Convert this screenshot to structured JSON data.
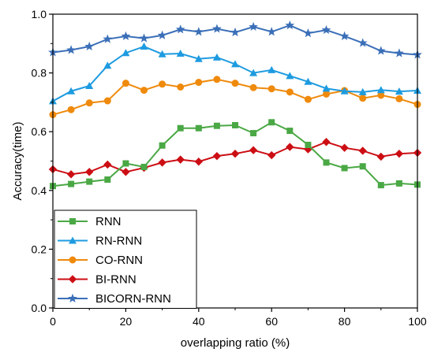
{
  "chart_data": {
    "type": "line",
    "title": "",
    "xlabel": "overlapping ratio (%)",
    "ylabel": "Accuracy(time)",
    "xlim": [
      0,
      100
    ],
    "ylim": [
      0.0,
      1.0
    ],
    "x_ticks": [
      0,
      20,
      40,
      60,
      80,
      100
    ],
    "y_ticks": [
      0.0,
      0.2,
      0.4,
      0.6,
      0.8,
      1.0
    ],
    "x_tick_labels": [
      "0",
      "20",
      "40",
      "60",
      "80",
      "100"
    ],
    "y_tick_labels": [
      "0.0",
      "0.2",
      "0.4",
      "0.6",
      "0.8",
      "1.0"
    ],
    "grid": false,
    "legend_position": "bottom-left",
    "x": [
      0,
      5,
      10,
      15,
      20,
      25,
      30,
      35,
      40,
      45,
      50,
      55,
      60,
      65,
      70,
      75,
      80,
      85,
      90,
      95,
      100
    ],
    "series": [
      {
        "name": "RNN",
        "color": "#4aa845",
        "marker": "square",
        "values": [
          0.415,
          0.422,
          0.43,
          0.437,
          0.492,
          0.48,
          0.553,
          0.612,
          0.612,
          0.62,
          0.622,
          0.595,
          0.632,
          0.603,
          0.555,
          0.495,
          0.476,
          0.482,
          0.418,
          0.424,
          0.42
        ]
      },
      {
        "name": "RN-RNN",
        "color": "#1e9be0",
        "marker": "triangle",
        "values": [
          0.704,
          0.738,
          0.756,
          0.825,
          0.868,
          0.89,
          0.864,
          0.866,
          0.848,
          0.853,
          0.83,
          0.8,
          0.81,
          0.79,
          0.77,
          0.747,
          0.738,
          0.735,
          0.742,
          0.737,
          0.74
        ]
      },
      {
        "name": "CO-RNN",
        "color": "#ef8a0c",
        "marker": "circle",
        "values": [
          0.658,
          0.675,
          0.698,
          0.705,
          0.765,
          0.741,
          0.762,
          0.752,
          0.768,
          0.778,
          0.765,
          0.75,
          0.746,
          0.735,
          0.71,
          0.728,
          0.74,
          0.714,
          0.724,
          0.712,
          0.693
        ]
      },
      {
        "name": "BI-RNN",
        "color": "#cc0e14",
        "marker": "diamond",
        "values": [
          0.472,
          0.455,
          0.463,
          0.488,
          0.463,
          0.477,
          0.495,
          0.505,
          0.498,
          0.517,
          0.525,
          0.537,
          0.52,
          0.548,
          0.54,
          0.565,
          0.545,
          0.535,
          0.515,
          0.525,
          0.528
        ]
      },
      {
        "name": "BICORN-RNN",
        "color": "#3b6fb8",
        "marker": "star",
        "values": [
          0.87,
          0.878,
          0.89,
          0.915,
          0.925,
          0.918,
          0.928,
          0.948,
          0.94,
          0.95,
          0.938,
          0.957,
          0.94,
          0.962,
          0.935,
          0.946,
          0.925,
          0.902,
          0.875,
          0.867,
          0.862
        ]
      }
    ]
  }
}
